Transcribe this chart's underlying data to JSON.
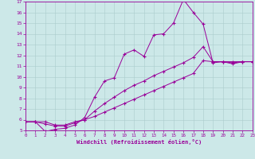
{
  "xlabel": "Windchill (Refroidissement éolien,°C)",
  "background_color": "#cce8e8",
  "line_color": "#990099",
  "xlim": [
    0,
    23
  ],
  "ylim": [
    5,
    17
  ],
  "yticks": [
    5,
    6,
    7,
    8,
    9,
    10,
    11,
    12,
    13,
    14,
    15,
    16,
    17
  ],
  "xticks": [
    0,
    1,
    2,
    3,
    4,
    5,
    6,
    7,
    8,
    9,
    10,
    11,
    12,
    13,
    14,
    15,
    16,
    17,
    18,
    19,
    20,
    21,
    22,
    23
  ],
  "series1_x": [
    0,
    1,
    2,
    3,
    4,
    5,
    6,
    7,
    8,
    9,
    10,
    11,
    12,
    13,
    14,
    15,
    16,
    17,
    18,
    19,
    20,
    21,
    22,
    23
  ],
  "series1_y": [
    5.8,
    5.8,
    4.9,
    5.1,
    5.2,
    5.5,
    6.2,
    8.1,
    9.6,
    9.9,
    12.1,
    12.5,
    11.9,
    13.9,
    14.0,
    15.0,
    17.2,
    16.0,
    14.9,
    11.3,
    11.4,
    11.2,
    11.4,
    11.4
  ],
  "series2_x": [
    0,
    1,
    2,
    3,
    4,
    5,
    6,
    7,
    8,
    9,
    10,
    11,
    12,
    13,
    14,
    15,
    16,
    17,
    18,
    19,
    20,
    21,
    22,
    23
  ],
  "series2_y": [
    5.8,
    5.8,
    5.8,
    5.5,
    5.5,
    5.8,
    6.0,
    6.3,
    6.7,
    7.1,
    7.5,
    7.9,
    8.3,
    8.7,
    9.1,
    9.5,
    9.9,
    10.3,
    11.5,
    11.4,
    11.4,
    11.4,
    11.4,
    11.4
  ],
  "series3_x": [
    0,
    1,
    2,
    3,
    4,
    5,
    6,
    7,
    8,
    9,
    10,
    11,
    12,
    13,
    14,
    15,
    16,
    17,
    18,
    19,
    20,
    21,
    22,
    23
  ],
  "series3_y": [
    5.8,
    5.8,
    5.6,
    5.4,
    5.4,
    5.7,
    6.0,
    6.8,
    7.5,
    8.1,
    8.7,
    9.2,
    9.6,
    10.1,
    10.5,
    10.9,
    11.3,
    11.8,
    12.8,
    11.4,
    11.4,
    11.3,
    11.4,
    11.4
  ]
}
